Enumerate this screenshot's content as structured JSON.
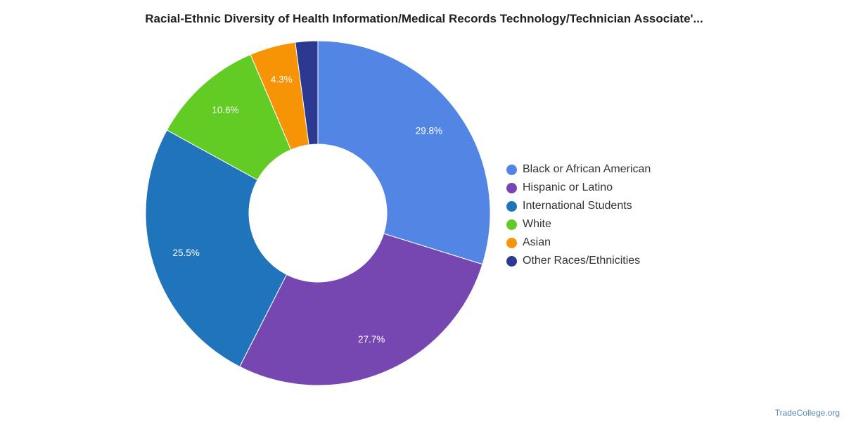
{
  "chart_data": {
    "type": "pie",
    "title": "Racial-Ethnic Diversity of Health Information/Medical Records Technology/Technician Associate'...",
    "slices": [
      {
        "name": "Black or African American",
        "value": 29.8,
        "label": "29.8%",
        "color": "#5386e4"
      },
      {
        "name": "Hispanic or Latino",
        "value": 27.7,
        "label": "27.7%",
        "color": "#7647b0"
      },
      {
        "name": "International Students",
        "value": 25.5,
        "label": "25.5%",
        "color": "#1f74bb"
      },
      {
        "name": "White",
        "value": 10.6,
        "label": "10.6%",
        "color": "#63cc24"
      },
      {
        "name": "Asian",
        "value": 4.3,
        "label": "4.3%",
        "color": "#f79406"
      },
      {
        "name": "Other Races/Ethnicities",
        "value": 2.1,
        "label": "",
        "color": "#2b3990"
      }
    ],
    "legend_position": "right"
  },
  "source": "TradeCollege.org"
}
